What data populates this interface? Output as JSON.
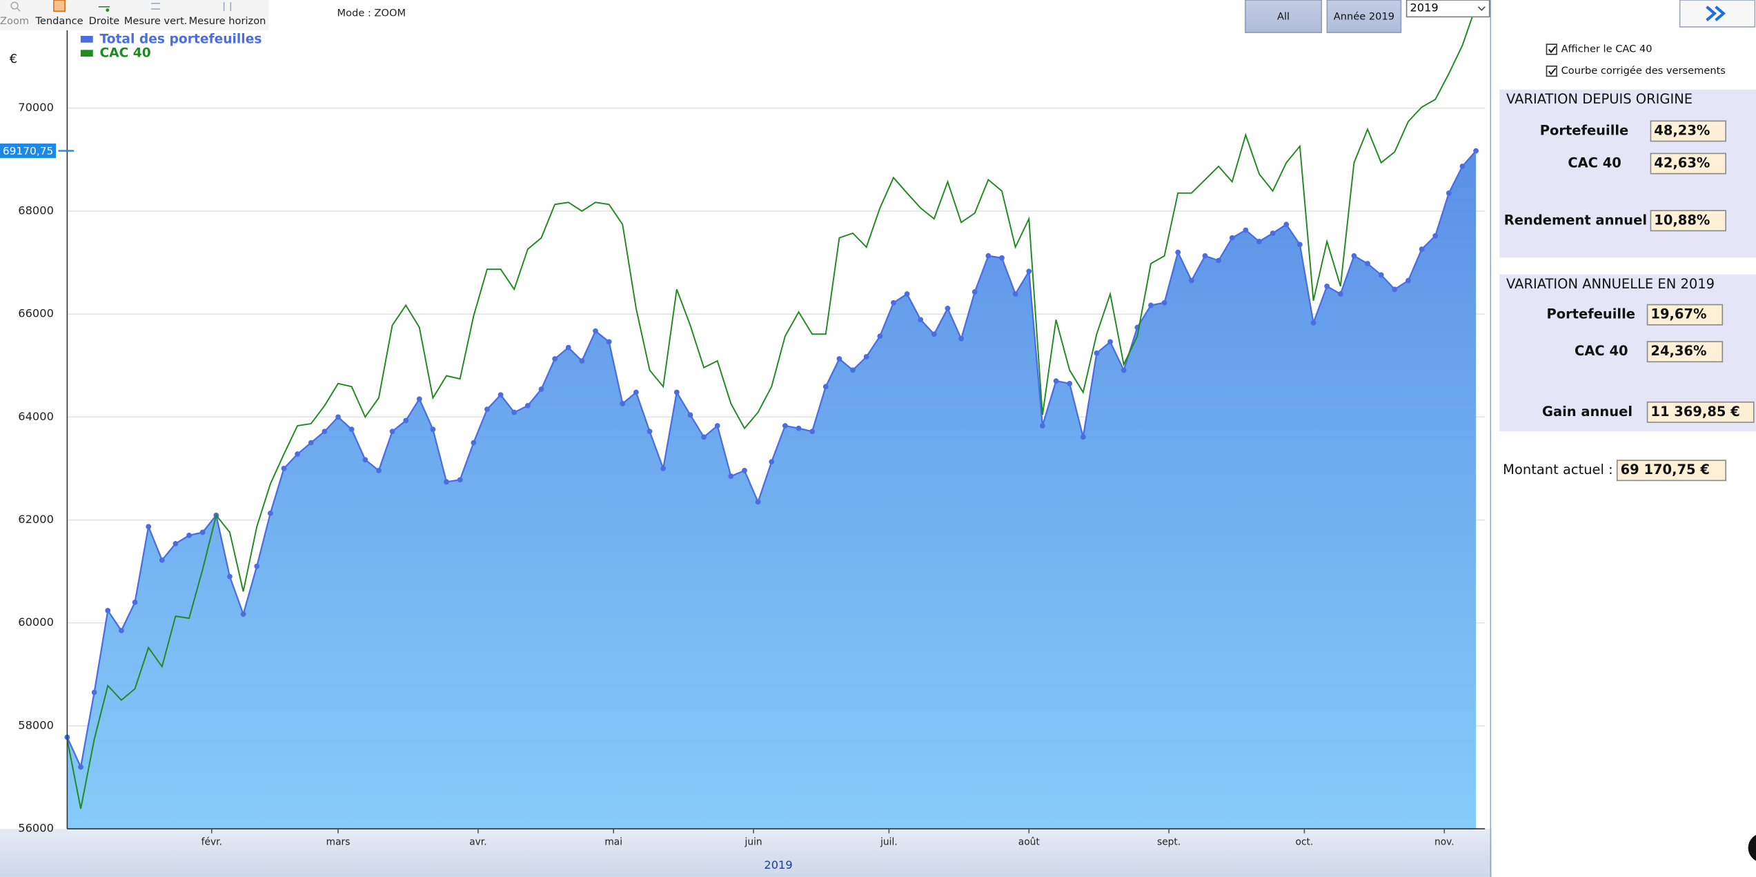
{
  "toolbar": {
    "buttons": [
      "Zoom",
      "Tendance",
      "Droite",
      "Mesure vert.",
      "Mesure horizon"
    ],
    "mode": "Mode : ZOOM"
  },
  "period_buttons": [
    "All",
    "Année 2019"
  ],
  "year_select": "2019",
  "chart_data": {
    "type": "line",
    "y_unit": "€",
    "xlabel": "2019",
    "cursor": {
      "value": 69170.75,
      "label": "69170,75"
    },
    "xlim": [
      0,
      314
    ],
    "xticks": [
      {
        "value": 32,
        "label": "févr."
      },
      {
        "value": 60,
        "label": "mars"
      },
      {
        "value": 91,
        "label": "avr."
      },
      {
        "value": 121,
        "label": "mai"
      },
      {
        "value": 152,
        "label": "juin"
      },
      {
        "value": 182,
        "label": "juil."
      },
      {
        "value": 213,
        "label": "août"
      },
      {
        "value": 244,
        "label": "sept."
      },
      {
        "value": 274,
        "label": "oct."
      },
      {
        "value": 305,
        "label": "nov."
      }
    ],
    "ylim": [
      56000,
      72100
    ],
    "yticks": [
      56000,
      58000,
      60000,
      62000,
      64000,
      66000,
      68000,
      70000
    ],
    "grid": true,
    "x": [
      0,
      3,
      6,
      9,
      12,
      15,
      18,
      21,
      24,
      27,
      30,
      33,
      36,
      39,
      42,
      45,
      48,
      51,
      54,
      57,
      60,
      63,
      66,
      69,
      72,
      75,
      78,
      81,
      84,
      87,
      90,
      93,
      96,
      99,
      102,
      105,
      108,
      111,
      114,
      117,
      120,
      123,
      126,
      129,
      132,
      135,
      138,
      141,
      144,
      147,
      150,
      153,
      156,
      159,
      162,
      165,
      168,
      171,
      174,
      177,
      180,
      183,
      186,
      189,
      192,
      195,
      198,
      201,
      204,
      207,
      210,
      213,
      216,
      219,
      222,
      225,
      228,
      231,
      234,
      237,
      240,
      243,
      246,
      249,
      252,
      255,
      258,
      261,
      264,
      267,
      270,
      273,
      276,
      279,
      282,
      285,
      288,
      291,
      294,
      297,
      300,
      303,
      306,
      309,
      312
    ],
    "series": [
      {
        "name": "Total des portefeuilles",
        "color": "#4a6de2",
        "area_gradient": [
          "#5b90e6",
          "#86ccf9"
        ],
        "markers": true,
        "values": [
          57780,
          57200,
          58650,
          60240,
          59850,
          60400,
          61870,
          61220,
          61540,
          61700,
          61760,
          62090,
          60900,
          60170,
          61100,
          62130,
          63000,
          63280,
          63500,
          63720,
          64000,
          63760,
          63170,
          62960,
          63720,
          63930,
          64350,
          63760,
          62740,
          62780,
          63500,
          64150,
          64430,
          64090,
          64220,
          64540,
          65130,
          65350,
          65090,
          65670,
          65460,
          64260,
          64480,
          63720,
          63000,
          64480,
          64040,
          63610,
          63830,
          62850,
          62960,
          62350,
          63130,
          63830,
          63780,
          63720,
          64590,
          65130,
          64910,
          65170,
          65570,
          66220,
          66390,
          65890,
          65610,
          66110,
          65520,
          66430,
          67130,
          67090,
          66390,
          66830,
          63830,
          64700,
          64650,
          63610,
          65240,
          65460,
          64910,
          65740,
          66170,
          66220,
          67200,
          66650,
          67130,
          67040,
          67480,
          67630,
          67410,
          67570,
          67740,
          67350,
          65830,
          66540,
          66390,
          67130,
          66980,
          66760,
          66480,
          66650,
          67260,
          67520,
          68350,
          68870,
          69170.75
        ]
      },
      {
        "name": "CAC 40",
        "color": "#1f8a1f",
        "markers": false,
        "values": [
          57740,
          56390,
          57740,
          58780,
          58500,
          58720,
          59520,
          59150,
          60130,
          60090,
          61040,
          62090,
          61760,
          60610,
          61870,
          62700,
          63280,
          63830,
          63870,
          64220,
          64650,
          64590,
          64000,
          64370,
          65780,
          66170,
          65740,
          64370,
          64800,
          64740,
          65960,
          66870,
          66870,
          66480,
          67260,
          67480,
          68130,
          68170,
          68000,
          68170,
          68130,
          67740,
          66110,
          64910,
          64590,
          66480,
          65780,
          64960,
          65090,
          64260,
          63780,
          64090,
          64590,
          65570,
          66040,
          65610,
          65610,
          67480,
          67570,
          67300,
          68060,
          68650,
          68350,
          68060,
          67850,
          68570,
          67780,
          67960,
          68610,
          68390,
          67300,
          67850,
          64040,
          65890,
          64910,
          64480,
          65610,
          66390,
          65020,
          65570,
          66980,
          67130,
          68350,
          68350,
          68610,
          68870,
          68570,
          69480,
          68720,
          68390,
          68940,
          69260,
          66260,
          67410,
          66540,
          68940,
          69590,
          68940,
          69150,
          69740,
          70020,
          70170,
          70670,
          71220,
          71980
        ]
      }
    ]
  },
  "options": [
    {
      "label": "Afficher le CAC 40",
      "checked": true
    },
    {
      "label": "Courbe corrigée des versements",
      "checked": true
    }
  ],
  "origin_panel": {
    "title": "VARIATION DEPUIS ORIGINE",
    "rows": [
      {
        "label": "Portefeuille",
        "value": "48,23%"
      },
      {
        "label": "CAC 40",
        "value": "42,63%"
      },
      {
        "label": "Rendement annuel :",
        "value": "10,88%"
      }
    ]
  },
  "annual_panel": {
    "title": "VARIATION ANNUELLE EN 2019",
    "rows": [
      {
        "label": "Portefeuille",
        "value": "19,67%"
      },
      {
        "label": "CAC 40",
        "value": "24,36%"
      },
      {
        "label": "Gain annuel",
        "value": "11 369,85 €"
      }
    ]
  },
  "current": {
    "label": "Montant actuel :",
    "value": "69 170,75 €"
  }
}
